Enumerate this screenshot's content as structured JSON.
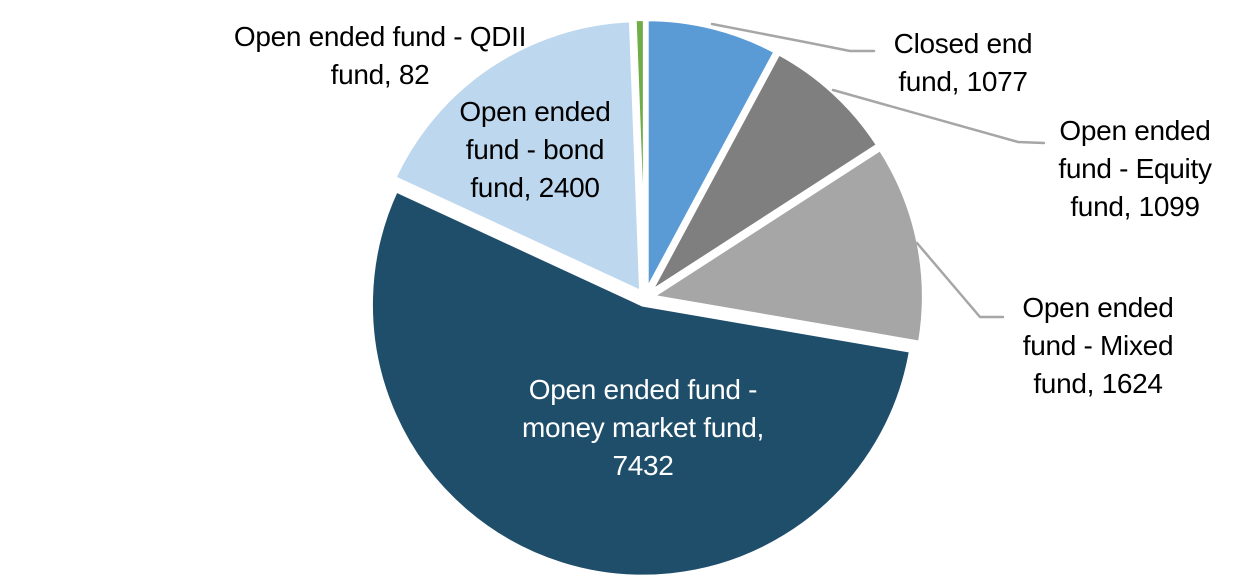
{
  "chart_data": {
    "type": "pie",
    "title": "",
    "legend": "none",
    "grid": false,
    "start_angle_deg": 0,
    "direction": "clockwise",
    "background_color": "#FFFFFF",
    "slice_border_color": "#FFFFFF",
    "leader_line_color": "#A6A6A6",
    "categories": [
      "Closed end fund",
      "Open ended fund - Equity fund",
      "Open ended fund - Mixed fund",
      "Open ended fund - money market fund",
      "Open ended fund - bond fund",
      "Open ended fund - QDII fund"
    ],
    "values": [
      1077,
      1099,
      1624,
      7432,
      2400,
      82
    ],
    "slices": [
      {
        "name": "Closed end fund",
        "value": 1077,
        "color": "#5B9BD5",
        "label_color": "#000000",
        "label_lines": [
          "Closed end",
          "fund, 1077"
        ]
      },
      {
        "name": "Open ended fund - Equity fund",
        "value": 1099,
        "color": "#7F7F7F",
        "label_color": "#000000",
        "label_lines": [
          "Open ended",
          "fund - Equity",
          "fund, 1099"
        ]
      },
      {
        "name": "Open ended fund - Mixed fund",
        "value": 1624,
        "color": "#A6A6A6",
        "label_color": "#000000",
        "label_lines": [
          "Open ended",
          "fund - Mixed",
          "fund, 1624"
        ]
      },
      {
        "name": "Open ended fund - money market fund",
        "value": 7432,
        "color": "#1F4E6B",
        "label_color": "#FFFFFF",
        "label_lines": [
          "Open ended fund -",
          "money market fund,",
          "7432"
        ]
      },
      {
        "name": "Open ended fund - bond fund",
        "value": 2400,
        "color": "#BDD7EE",
        "label_color": "#000000",
        "label_lines": [
          "Open ended",
          "fund - bond",
          "fund, 2400"
        ]
      },
      {
        "name": "Open ended fund - QDII fund",
        "value": 82,
        "color": "#70AD47",
        "label_color": "#000000",
        "label_lines": [
          "Open ended fund - QDII",
          "fund, 82"
        ]
      }
    ]
  }
}
